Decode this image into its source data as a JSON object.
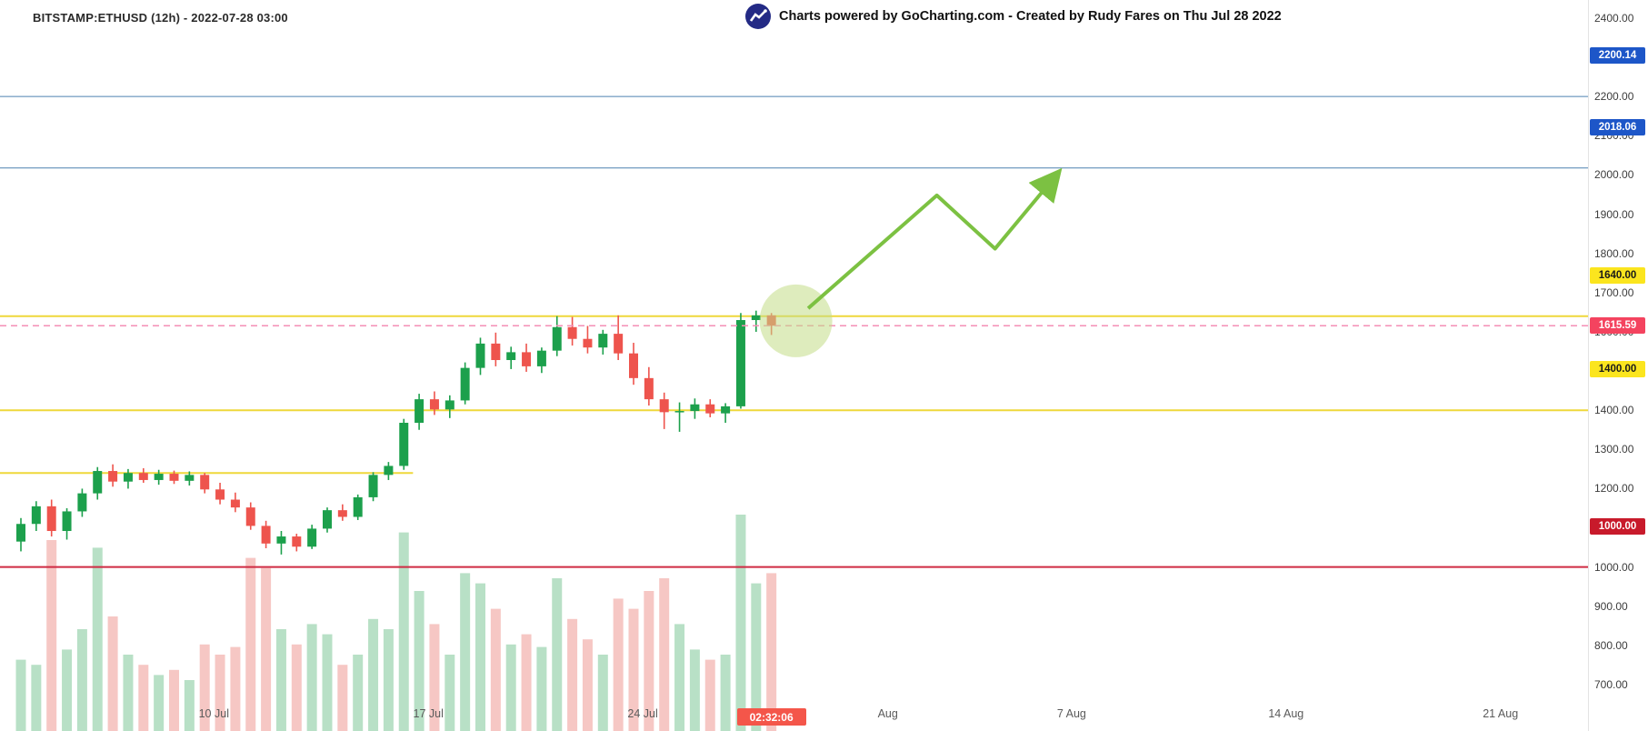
{
  "header": {
    "symbol_info": "BITSTAMP:ETHUSD (12h) - 2022-07-28 03:00",
    "watermark_text": "Charts powered by GoCharting.com - Created by Rudy Fares on Thu Jul 28 2022",
    "logo_icon": "gocharting-logo"
  },
  "countdown_badge": "02:32:06",
  "chart_data": {
    "type": "candlestick",
    "symbol": "BITSTAMP:ETHUSD",
    "interval": "12h",
    "last_price": 1615.59,
    "ylim": [
      700,
      2400
    ],
    "grid": false,
    "price_tick_labels": [
      "2400.00",
      "2300.00",
      "2200.00",
      "2100.00",
      "2000.00",
      "1900.00",
      "1800.00",
      "1700.00",
      "1600.00",
      "1500.00",
      "1400.00",
      "1300.00",
      "1200.00",
      "1100.00",
      "1000.00",
      "900.00",
      "800.00",
      "700.00"
    ],
    "time_tick_labels": [
      {
        "label": "10 Jul",
        "day": 6.3
      },
      {
        "label": "17 Jul",
        "day": 13.3
      },
      {
        "label": "24 Jul",
        "day": 20.3
      },
      {
        "label": "Aug",
        "day": 28.3
      },
      {
        "label": "7 Aug",
        "day": 34.3
      },
      {
        "label": "14 Aug",
        "day": 41.3
      },
      {
        "label": "21 Aug",
        "day": 48.3
      }
    ],
    "candle_interval_days": 0.5,
    "candles": [
      [
        1065,
        1125,
        1040,
        1110,
        28
      ],
      [
        1110,
        1168,
        1092,
        1155,
        26
      ],
      [
        1155,
        1172,
        1078,
        1092,
        75
      ],
      [
        1092,
        1150,
        1070,
        1142,
        32
      ],
      [
        1142,
        1200,
        1128,
        1188,
        40
      ],
      [
        1188,
        1255,
        1172,
        1245,
        72
      ],
      [
        1245,
        1262,
        1205,
        1218,
        45
      ],
      [
        1218,
        1250,
        1200,
        1240,
        30
      ],
      [
        1240,
        1252,
        1215,
        1222,
        26
      ],
      [
        1222,
        1248,
        1210,
        1238,
        22
      ],
      [
        1238,
        1246,
        1212,
        1220,
        24
      ],
      [
        1220,
        1244,
        1208,
        1235,
        20
      ],
      [
        1235,
        1240,
        1188,
        1198,
        34
      ],
      [
        1198,
        1215,
        1160,
        1172,
        30
      ],
      [
        1172,
        1190,
        1140,
        1152,
        33
      ],
      [
        1152,
        1165,
        1095,
        1105,
        68
      ],
      [
        1105,
        1118,
        1048,
        1060,
        64
      ],
      [
        1060,
        1092,
        1032,
        1078,
        40
      ],
      [
        1078,
        1085,
        1040,
        1052,
        34
      ],
      [
        1052,
        1108,
        1046,
        1098,
        42
      ],
      [
        1098,
        1152,
        1088,
        1145,
        38
      ],
      [
        1145,
        1160,
        1118,
        1128,
        26
      ],
      [
        1128,
        1185,
        1120,
        1178,
        30
      ],
      [
        1178,
        1242,
        1168,
        1235,
        44
      ],
      [
        1235,
        1268,
        1222,
        1258,
        40
      ],
      [
        1258,
        1378,
        1248,
        1368,
        78
      ],
      [
        1368,
        1442,
        1350,
        1428,
        55
      ],
      [
        1428,
        1448,
        1388,
        1402,
        42
      ],
      [
        1402,
        1438,
        1380,
        1425,
        30
      ],
      [
        1425,
        1522,
        1415,
        1508,
        62
      ],
      [
        1508,
        1585,
        1490,
        1570,
        58
      ],
      [
        1570,
        1598,
        1512,
        1528,
        48
      ],
      [
        1528,
        1562,
        1505,
        1548,
        34
      ],
      [
        1548,
        1570,
        1498,
        1512,
        38
      ],
      [
        1512,
        1560,
        1495,
        1552,
        33
      ],
      [
        1552,
        1640,
        1538,
        1612,
        60
      ],
      [
        1612,
        1638,
        1565,
        1582,
        44
      ],
      [
        1582,
        1615,
        1545,
        1560,
        36
      ],
      [
        1560,
        1605,
        1542,
        1595,
        30
      ],
      [
        1595,
        1642,
        1528,
        1545,
        52
      ],
      [
        1545,
        1572,
        1465,
        1482,
        48
      ],
      [
        1482,
        1510,
        1412,
        1428,
        55
      ],
      [
        1428,
        1445,
        1352,
        1395,
        60
      ],
      [
        1395,
        1420,
        1345,
        1398,
        42
      ],
      [
        1398,
        1430,
        1378,
        1415,
        32
      ],
      [
        1415,
        1428,
        1382,
        1392,
        28
      ],
      [
        1392,
        1418,
        1368,
        1410,
        30
      ],
      [
        1410,
        1648,
        1404,
        1630,
        85
      ],
      [
        1630,
        1654,
        1600,
        1642,
        58
      ],
      [
        1642,
        1648,
        1592,
        1615.59,
        62
      ]
    ],
    "levels": [
      {
        "price": 2200.14,
        "label": "2200.14",
        "line_color": "#4e81b0",
        "line_width": 1,
        "badge_bg": "#1d56c8",
        "badge_fg": "#ffffff"
      },
      {
        "price": 2018.06,
        "label": "2018.06",
        "line_color": "#4e81b0",
        "line_width": 1,
        "badge_bg": "#1d56c8",
        "badge_fg": "#ffffff"
      },
      {
        "price": 1640,
        "label": "1640.00",
        "line_color": "#efd83b",
        "line_width": 2,
        "badge_bg": "#fbe51e",
        "badge_fg": "#1a1a1a"
      },
      {
        "price": 1400,
        "label": "1400.00",
        "line_color": "#efd83b",
        "line_width": 2,
        "badge_bg": "#fbe51e",
        "badge_fg": "#1a1a1a"
      },
      {
        "price": 1240,
        "label": null,
        "line_color": "#efd83b",
        "line_width": 2,
        "extend_to_day": 12.8
      },
      {
        "price": 1000,
        "label": "1000.00",
        "line_color": "#cf2b43",
        "line_width": 2,
        "badge_bg": "#c81a2b",
        "badge_fg": "#ffffff"
      }
    ],
    "current_price_line": {
      "price": 1615.59,
      "label": "1615.59",
      "style": "dashed",
      "line_color": "#f48fb6",
      "badge_bg": "#f4435f",
      "badge_fg": "#ffffff"
    },
    "colors": {
      "up": "#1ca04c",
      "down": "#ee544d",
      "vol_up": "#b8e0c6",
      "vol_down": "#f6c7c4"
    },
    "drawing": {
      "highlight_circle": {
        "day": 25.3,
        "price": 1628,
        "radius_px": 40,
        "color": "#c3dd86"
      },
      "projection_arrow": {
        "color": "#7cc142",
        "path": [
          {
            "day": 25.7,
            "price": 1660
          },
          {
            "day": 29.9,
            "price": 1948
          },
          {
            "day": 31.8,
            "price": 1812
          },
          {
            "day": 33.8,
            "price": 2000
          }
        ]
      }
    }
  }
}
